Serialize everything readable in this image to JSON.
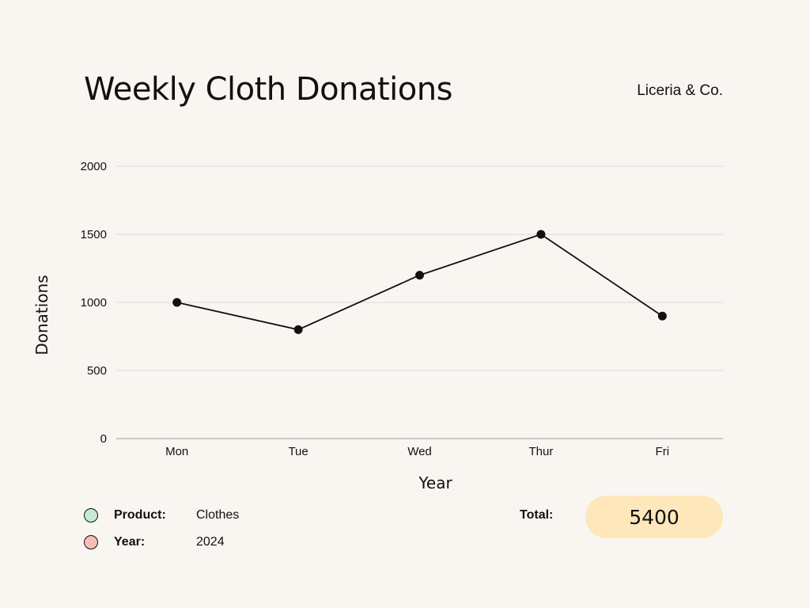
{
  "header": {
    "title": "Weekly Cloth Donations",
    "brand": "Liceria & Co."
  },
  "chart_data": {
    "type": "line",
    "categories": [
      "Mon",
      "Tue",
      "Wed",
      "Thur",
      "Fri"
    ],
    "series": [
      {
        "values": [
          1000,
          800,
          1200,
          1500,
          900
        ]
      }
    ],
    "xlabel": "Year",
    "ylabel": "Donations",
    "ylim": [
      0,
      2000
    ],
    "yticks": [
      0,
      500,
      1000,
      1500,
      2000
    ],
    "grid": true,
    "colors": {
      "line": "#111111",
      "grid": "#e2dfdb",
      "axis": "#bdbab6"
    }
  },
  "legend": {
    "items": [
      {
        "label": "Product:",
        "value": "Clothes",
        "color": "#c5ead2"
      },
      {
        "label": "Year:",
        "value": "2024",
        "color": "#f7beb8"
      }
    ]
  },
  "total": {
    "label": "Total:",
    "value": "5400",
    "pill_color": "#fde7bb"
  }
}
